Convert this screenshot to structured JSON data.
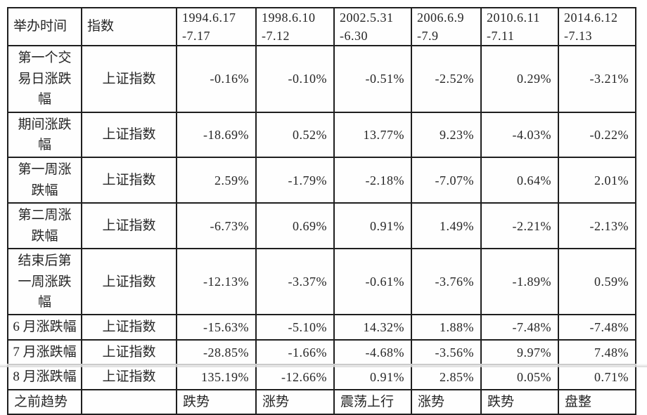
{
  "table": {
    "header": {
      "time_col_label": "举办时间",
      "index_col_label": "指数",
      "periods": [
        {
          "line1": "1994.6.17",
          "line2": "-7.17"
        },
        {
          "line1": "1998.6.10",
          "line2": "-7.12"
        },
        {
          "line1": "2002.5.31",
          "line2": "-6.30"
        },
        {
          "line1": "2006.6.9",
          "line2": "-7.9"
        },
        {
          "line1": "2010.6.11",
          "line2": "-7.11"
        },
        {
          "line1": "2014.6.12",
          "line2": "-7.13"
        }
      ]
    },
    "rows": [
      {
        "label": "第一个交易日涨跌幅",
        "index": "上证指数",
        "values": [
          "-0.16%",
          "-0.10%",
          "-0.51%",
          "-2.52%",
          "0.29%",
          "-3.21%"
        ]
      },
      {
        "label": "期间涨跌幅",
        "index": "上证指数",
        "values": [
          "-18.69%",
          "0.52%",
          "13.77%",
          "9.23%",
          "-4.03%",
          "-0.22%"
        ]
      },
      {
        "label": "第一周涨跌幅",
        "index": "上证指数",
        "values": [
          "2.59%",
          "-1.79%",
          "-2.18%",
          "-7.07%",
          "0.64%",
          "2.01%"
        ]
      },
      {
        "label": "第二周涨跌幅",
        "index": "上证指数",
        "values": [
          "-6.73%",
          "0.69%",
          "0.91%",
          "1.49%",
          "-2.21%",
          "-2.13%"
        ]
      },
      {
        "label": "结束后第一周涨跌幅",
        "index": "上证指数",
        "values": [
          "-12.13%",
          "-3.37%",
          "-0.61%",
          "-3.76%",
          "-1.89%",
          "0.59%"
        ]
      },
      {
        "label": "6 月涨跌幅",
        "index": "上证指数",
        "values": [
          "-15.63%",
          "-5.10%",
          "14.32%",
          "1.88%",
          "-7.48%",
          "-7.48%"
        ]
      },
      {
        "label": "7 月涨跌幅",
        "index": "上证指数",
        "values": [
          "-28.85%",
          "-1.66%",
          "-4.68%",
          "-3.56%",
          "9.97%",
          "7.48%"
        ]
      },
      {
        "label": "8 月涨跌幅",
        "index": "上证指数",
        "values": [
          "135.19%",
          "-12.66%",
          "0.91%",
          "2.85%",
          "0.05%",
          "0.71%"
        ]
      }
    ],
    "trend_row": {
      "label": "之前趋势",
      "index": "",
      "values": [
        "跌势",
        "涨势",
        "震荡上行",
        "涨势",
        "跌势",
        "盘整"
      ]
    }
  },
  "colors": {
    "border": "#1f1f1f",
    "text": "#262626",
    "background": "#ffffff"
  }
}
